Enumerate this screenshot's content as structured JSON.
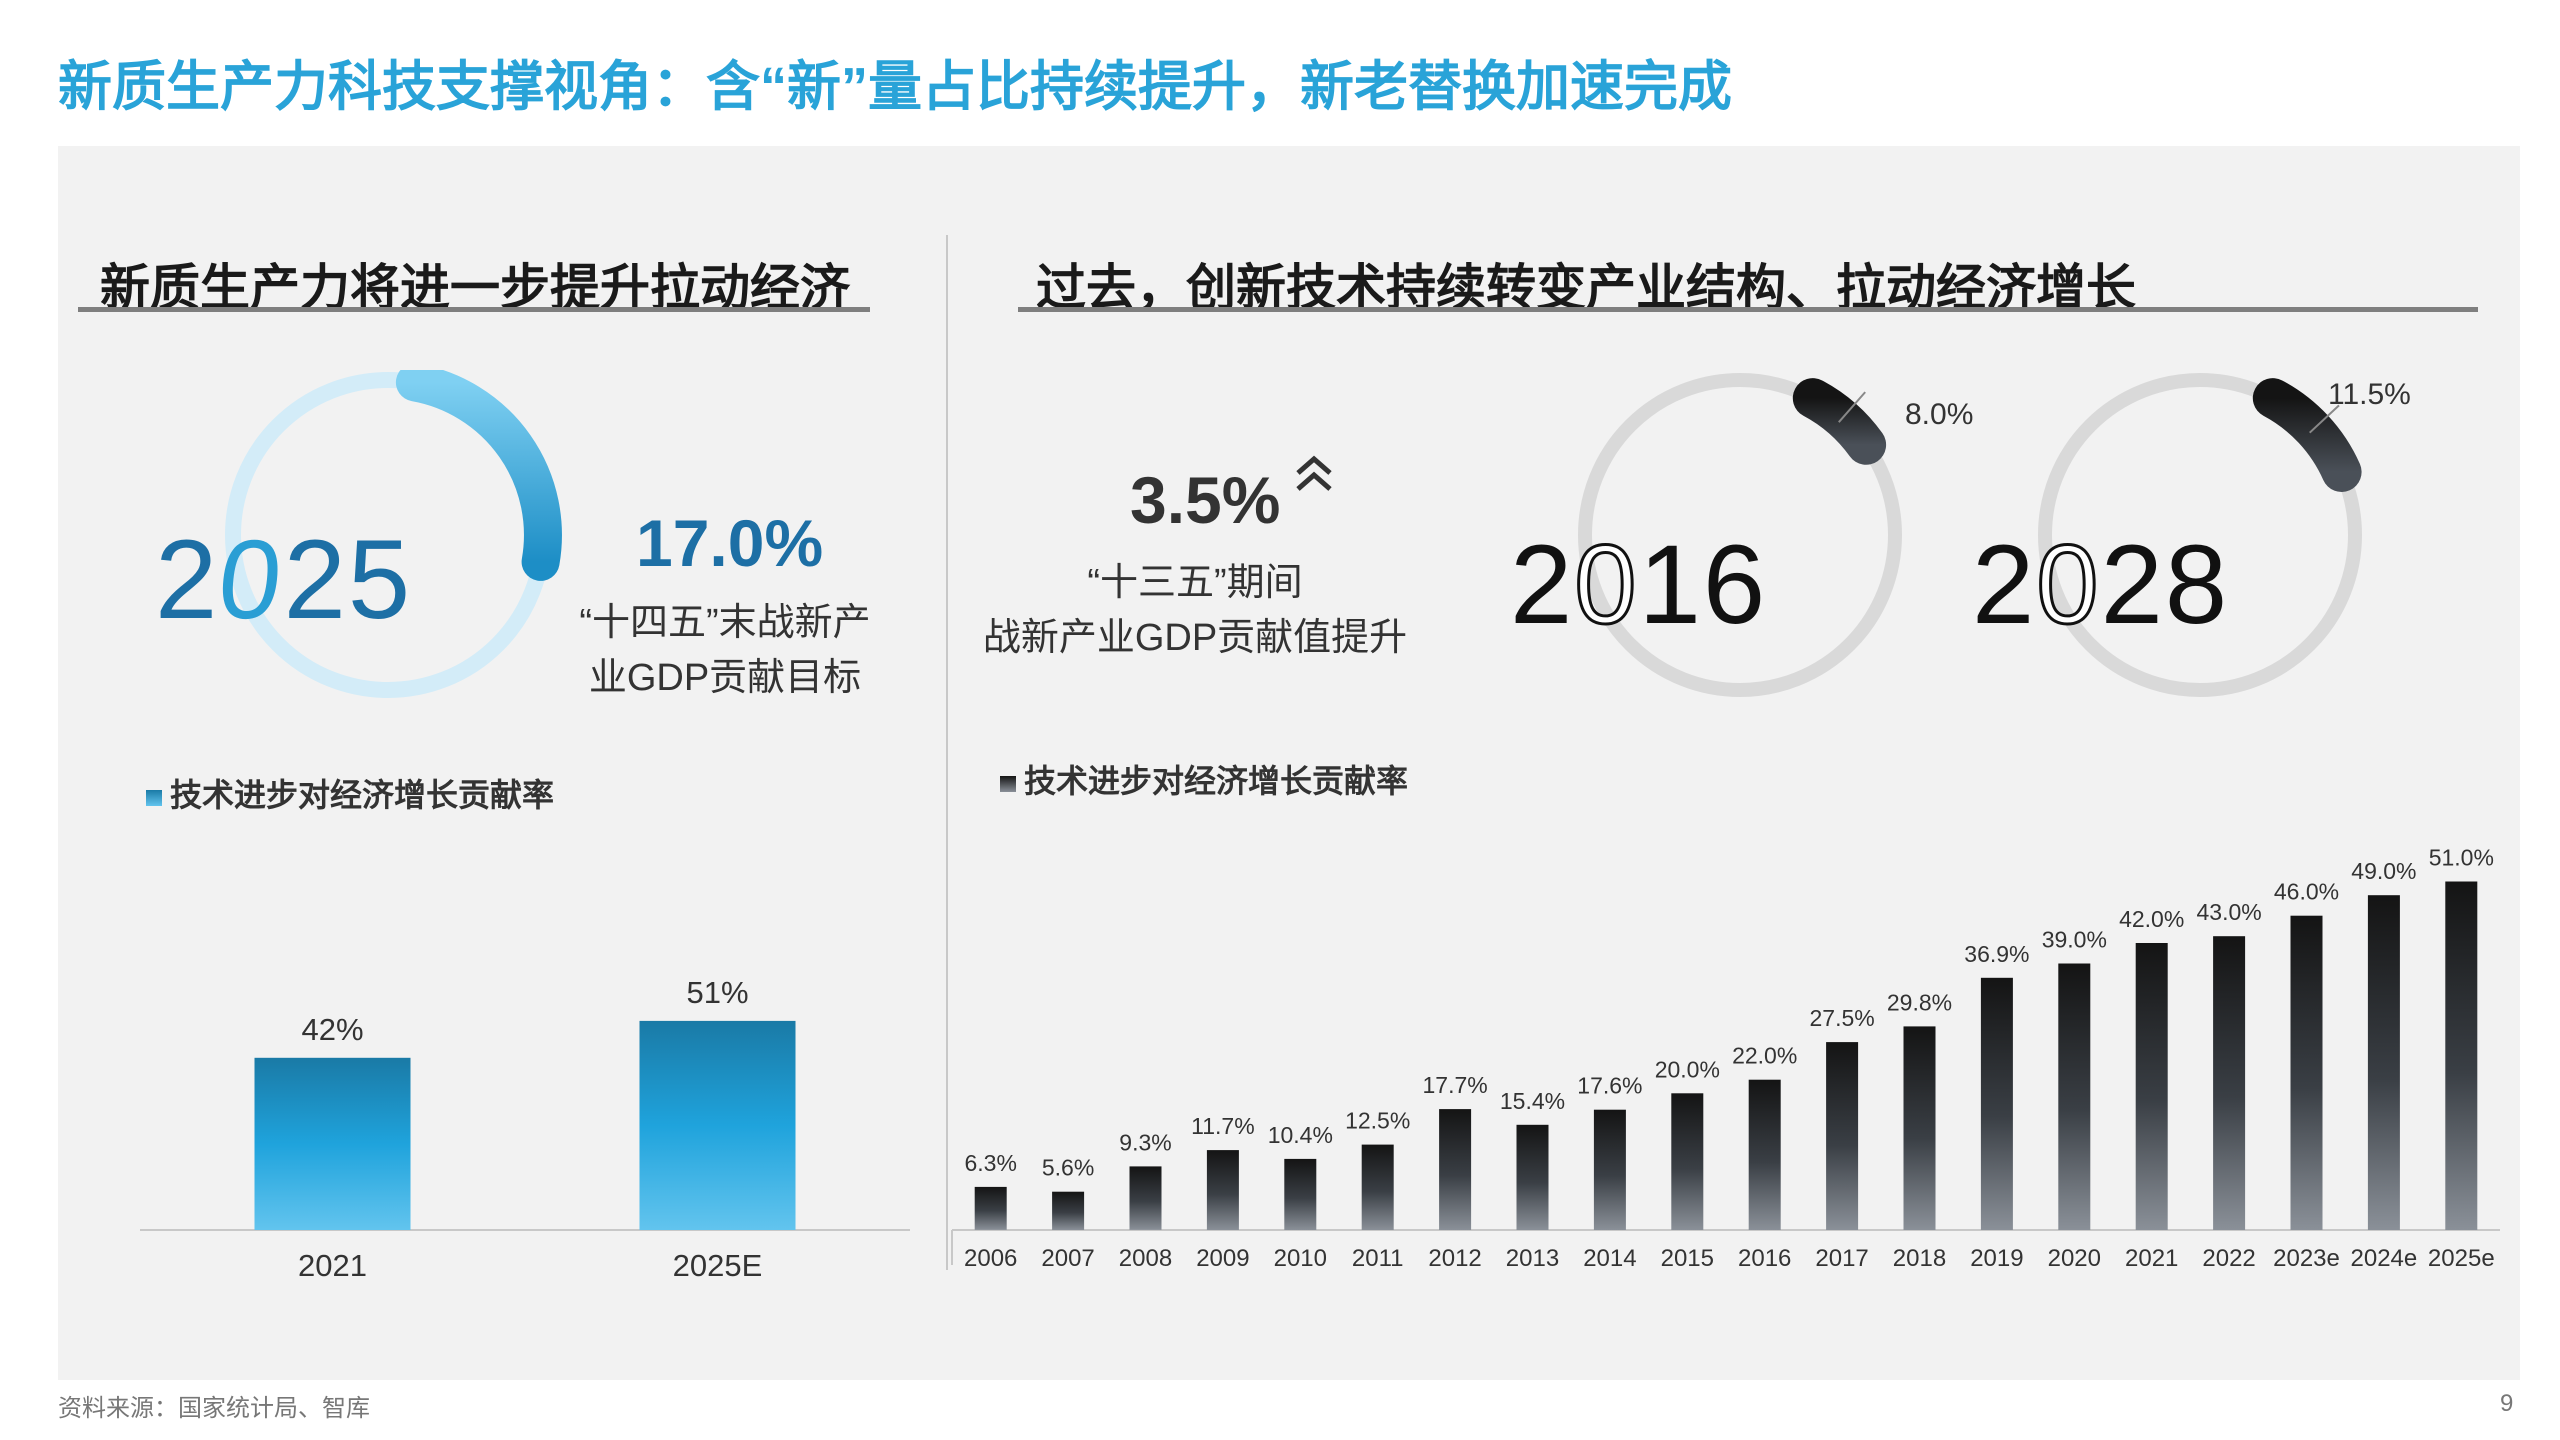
{
  "page_title": "新质生产力科技支撑视角：含“新”量占比持续提升，新老替换加速完成",
  "left": {
    "section_title": "新质生产力将进一步提升拉动经济",
    "year_display": {
      "prefix": "2",
      "lcd_digit": "0",
      "suffix": "25"
    },
    "gauge_value_pct": 17.0,
    "stat_value": "17.0%",
    "stat_desc_line1": "“十四五”末战新产",
    "stat_desc_line2": "业GDP贡献目标",
    "legend": "技术进步对经济增长贡献率"
  },
  "right": {
    "section_title": "过去，创新技术持续转变产业结构、拉动经济增长",
    "stat_value": "3.5%",
    "stat_icon": "double-chevron-up-icon",
    "stat_desc_line1": "“十三五”期间",
    "stat_desc_line2": "战新产业GDP贡献值提升",
    "gauge_2016": {
      "year_prefix": "2",
      "year_lcd": "0",
      "year_rest": "16",
      "label": "8.0%",
      "value_pct": 8.0
    },
    "gauge_2028": {
      "year_prefix": "2",
      "year_lcd": "0",
      "year_rest": "28",
      "label": "11.5%",
      "value_pct": 11.5
    },
    "legend": "技术进步对经济增长贡献率"
  },
  "colors": {
    "title_blue": "#29a3d8",
    "stat_blue": "#1d6fa5",
    "bar_blue_top": "#1a7aa6",
    "bar_blue_bottom": "#62c4ee",
    "bar_dark_top": "#141414",
    "bar_dark_bottom": "#8a9098"
  },
  "chart_data": [
    {
      "type": "bar",
      "categories": [
        "2021",
        "2025E"
      ],
      "values": [
        42,
        51
      ],
      "value_labels": [
        "42%",
        "51%"
      ],
      "legend": "技术进步对经济增长贡献率",
      "ylim": [
        0,
        60
      ]
    },
    {
      "type": "bar",
      "categories": [
        "2006",
        "2007",
        "2008",
        "2009",
        "2010",
        "2011",
        "2012",
        "2013",
        "2014",
        "2015",
        "2016",
        "2017",
        "2018",
        "2019",
        "2020",
        "2021",
        "2022",
        "2023e",
        "2024e",
        "2025e"
      ],
      "values": [
        6.3,
        5.6,
        9.3,
        11.7,
        10.4,
        12.5,
        17.7,
        15.4,
        17.6,
        20.0,
        22.0,
        27.5,
        29.8,
        36.9,
        39.0,
        42.0,
        43.0,
        46.0,
        49.0,
        51.0
      ],
      "value_labels": [
        "6.3%",
        "5.6%",
        "9.3%",
        "11.7%",
        "10.4%",
        "12.5%",
        "17.7%",
        "15.4%",
        "17.6%",
        "20.0%",
        "22.0%",
        "27.5%",
        "29.8%",
        "36.9%",
        "39.0%",
        "42.0%",
        "43.0%",
        "46.0%",
        "49.0%",
        "51.0%"
      ],
      "legend": "技术进步对经济增长贡献率",
      "ylim": [
        0,
        60
      ]
    }
  ],
  "source": "资料来源：国家统计局、智库",
  "page_number": "9"
}
